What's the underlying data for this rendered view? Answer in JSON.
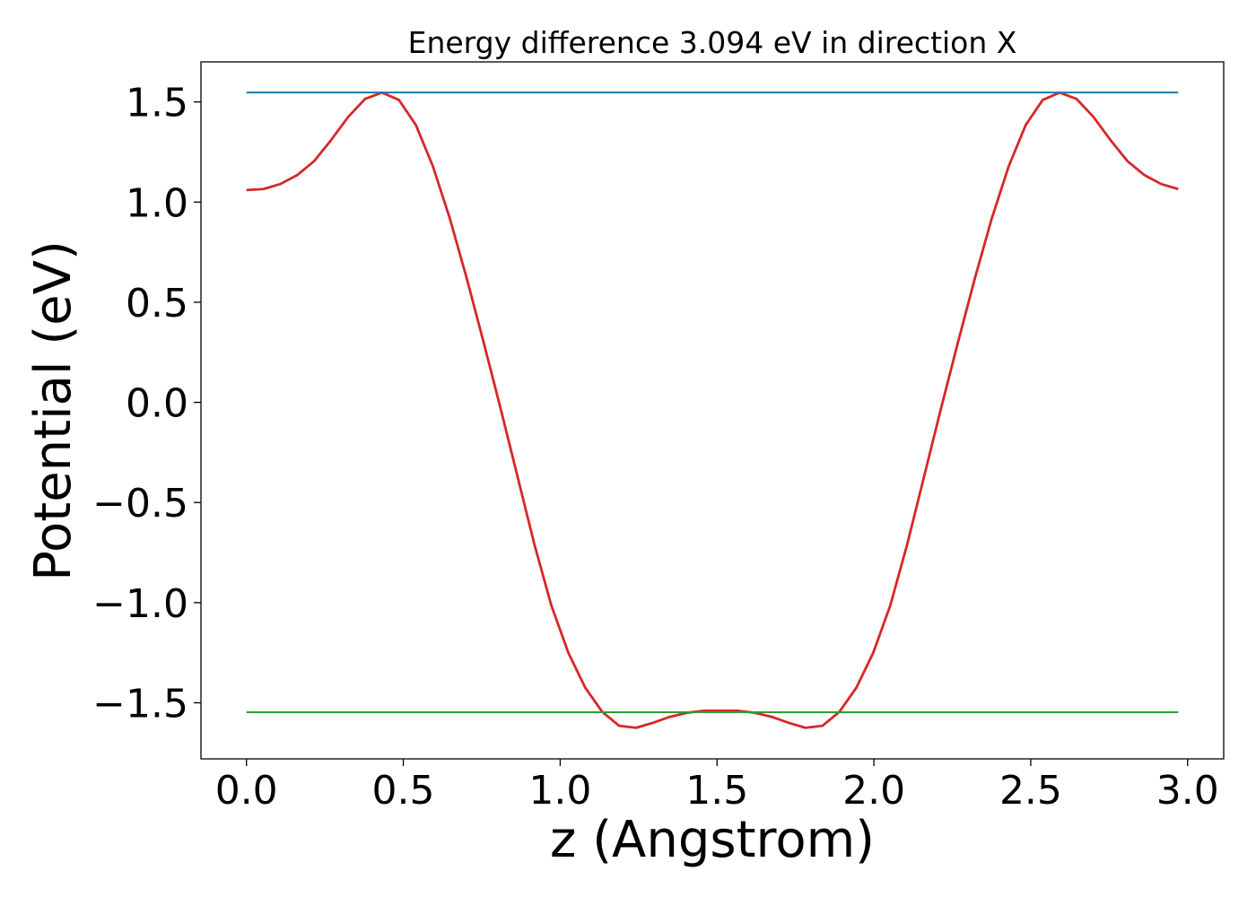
{
  "chart_data": {
    "type": "line",
    "title": "Energy difference 3.094 eV in direction X",
    "xlabel": "z (Angstrom)",
    "ylabel": "Potential (eV)",
    "xlim": [
      -0.145,
      3.115
    ],
    "ylim": [
      -1.78,
      1.7
    ],
    "xticks": [
      0.0,
      0.5,
      1.0,
      1.5,
      2.0,
      2.5,
      3.0
    ],
    "xtick_labels": [
      "0.0",
      "0.5",
      "1.0",
      "1.5",
      "2.0",
      "2.5",
      "3.0"
    ],
    "yticks": [
      1.5,
      1.0,
      0.5,
      0.0,
      -0.5,
      -1.0,
      -1.5
    ],
    "ytick_labels": [
      "1.5",
      "1.0",
      "0.5",
      "0.0",
      "−0.5",
      "−1.0",
      "−1.5"
    ],
    "grid": false,
    "series": [
      {
        "color": "#d62728",
        "x": [
          0.0,
          0.054,
          0.108,
          0.162,
          0.216,
          0.27,
          0.324,
          0.378,
          0.432,
          0.486,
          0.54,
          0.594,
          0.648,
          0.702,
          0.756,
          0.81,
          0.864,
          0.918,
          0.972,
          1.026,
          1.08,
          1.134,
          1.188,
          1.242,
          1.296,
          1.35,
          1.404,
          1.458,
          1.512,
          1.566,
          1.62,
          1.674,
          1.728,
          1.782,
          1.836,
          1.89,
          1.944,
          1.998,
          2.052,
          2.106,
          2.16,
          2.214,
          2.268,
          2.322,
          2.376,
          2.43,
          2.484,
          2.538,
          2.592,
          2.646,
          2.7,
          2.754,
          2.808,
          2.862,
          2.916,
          2.97
        ],
        "y": [
          1.06,
          1.065,
          1.09,
          1.135,
          1.205,
          1.31,
          1.425,
          1.515,
          1.547,
          1.51,
          1.385,
          1.18,
          0.92,
          0.62,
          0.3,
          -0.03,
          -0.37,
          -0.71,
          -1.015,
          -1.25,
          -1.425,
          -1.545,
          -1.615,
          -1.625,
          -1.6,
          -1.57,
          -1.55,
          -1.54,
          -1.54,
          -1.54,
          -1.55,
          -1.57,
          -1.6,
          -1.625,
          -1.615,
          -1.545,
          -1.425,
          -1.25,
          -1.015,
          -0.71,
          -0.37,
          -0.03,
          0.3,
          0.62,
          0.92,
          1.18,
          1.385,
          1.51,
          1.547,
          1.515,
          1.425,
          1.31,
          1.205,
          1.135,
          1.09,
          1.065
        ]
      },
      {
        "color": "#1f77b4",
        "x": [
          0.0,
          2.97
        ],
        "y": [
          1.547,
          1.547
        ]
      },
      {
        "color": "#2ca02c",
        "x": [
          0.0,
          2.97
        ],
        "y": [
          -1.547,
          -1.547
        ]
      }
    ]
  }
}
